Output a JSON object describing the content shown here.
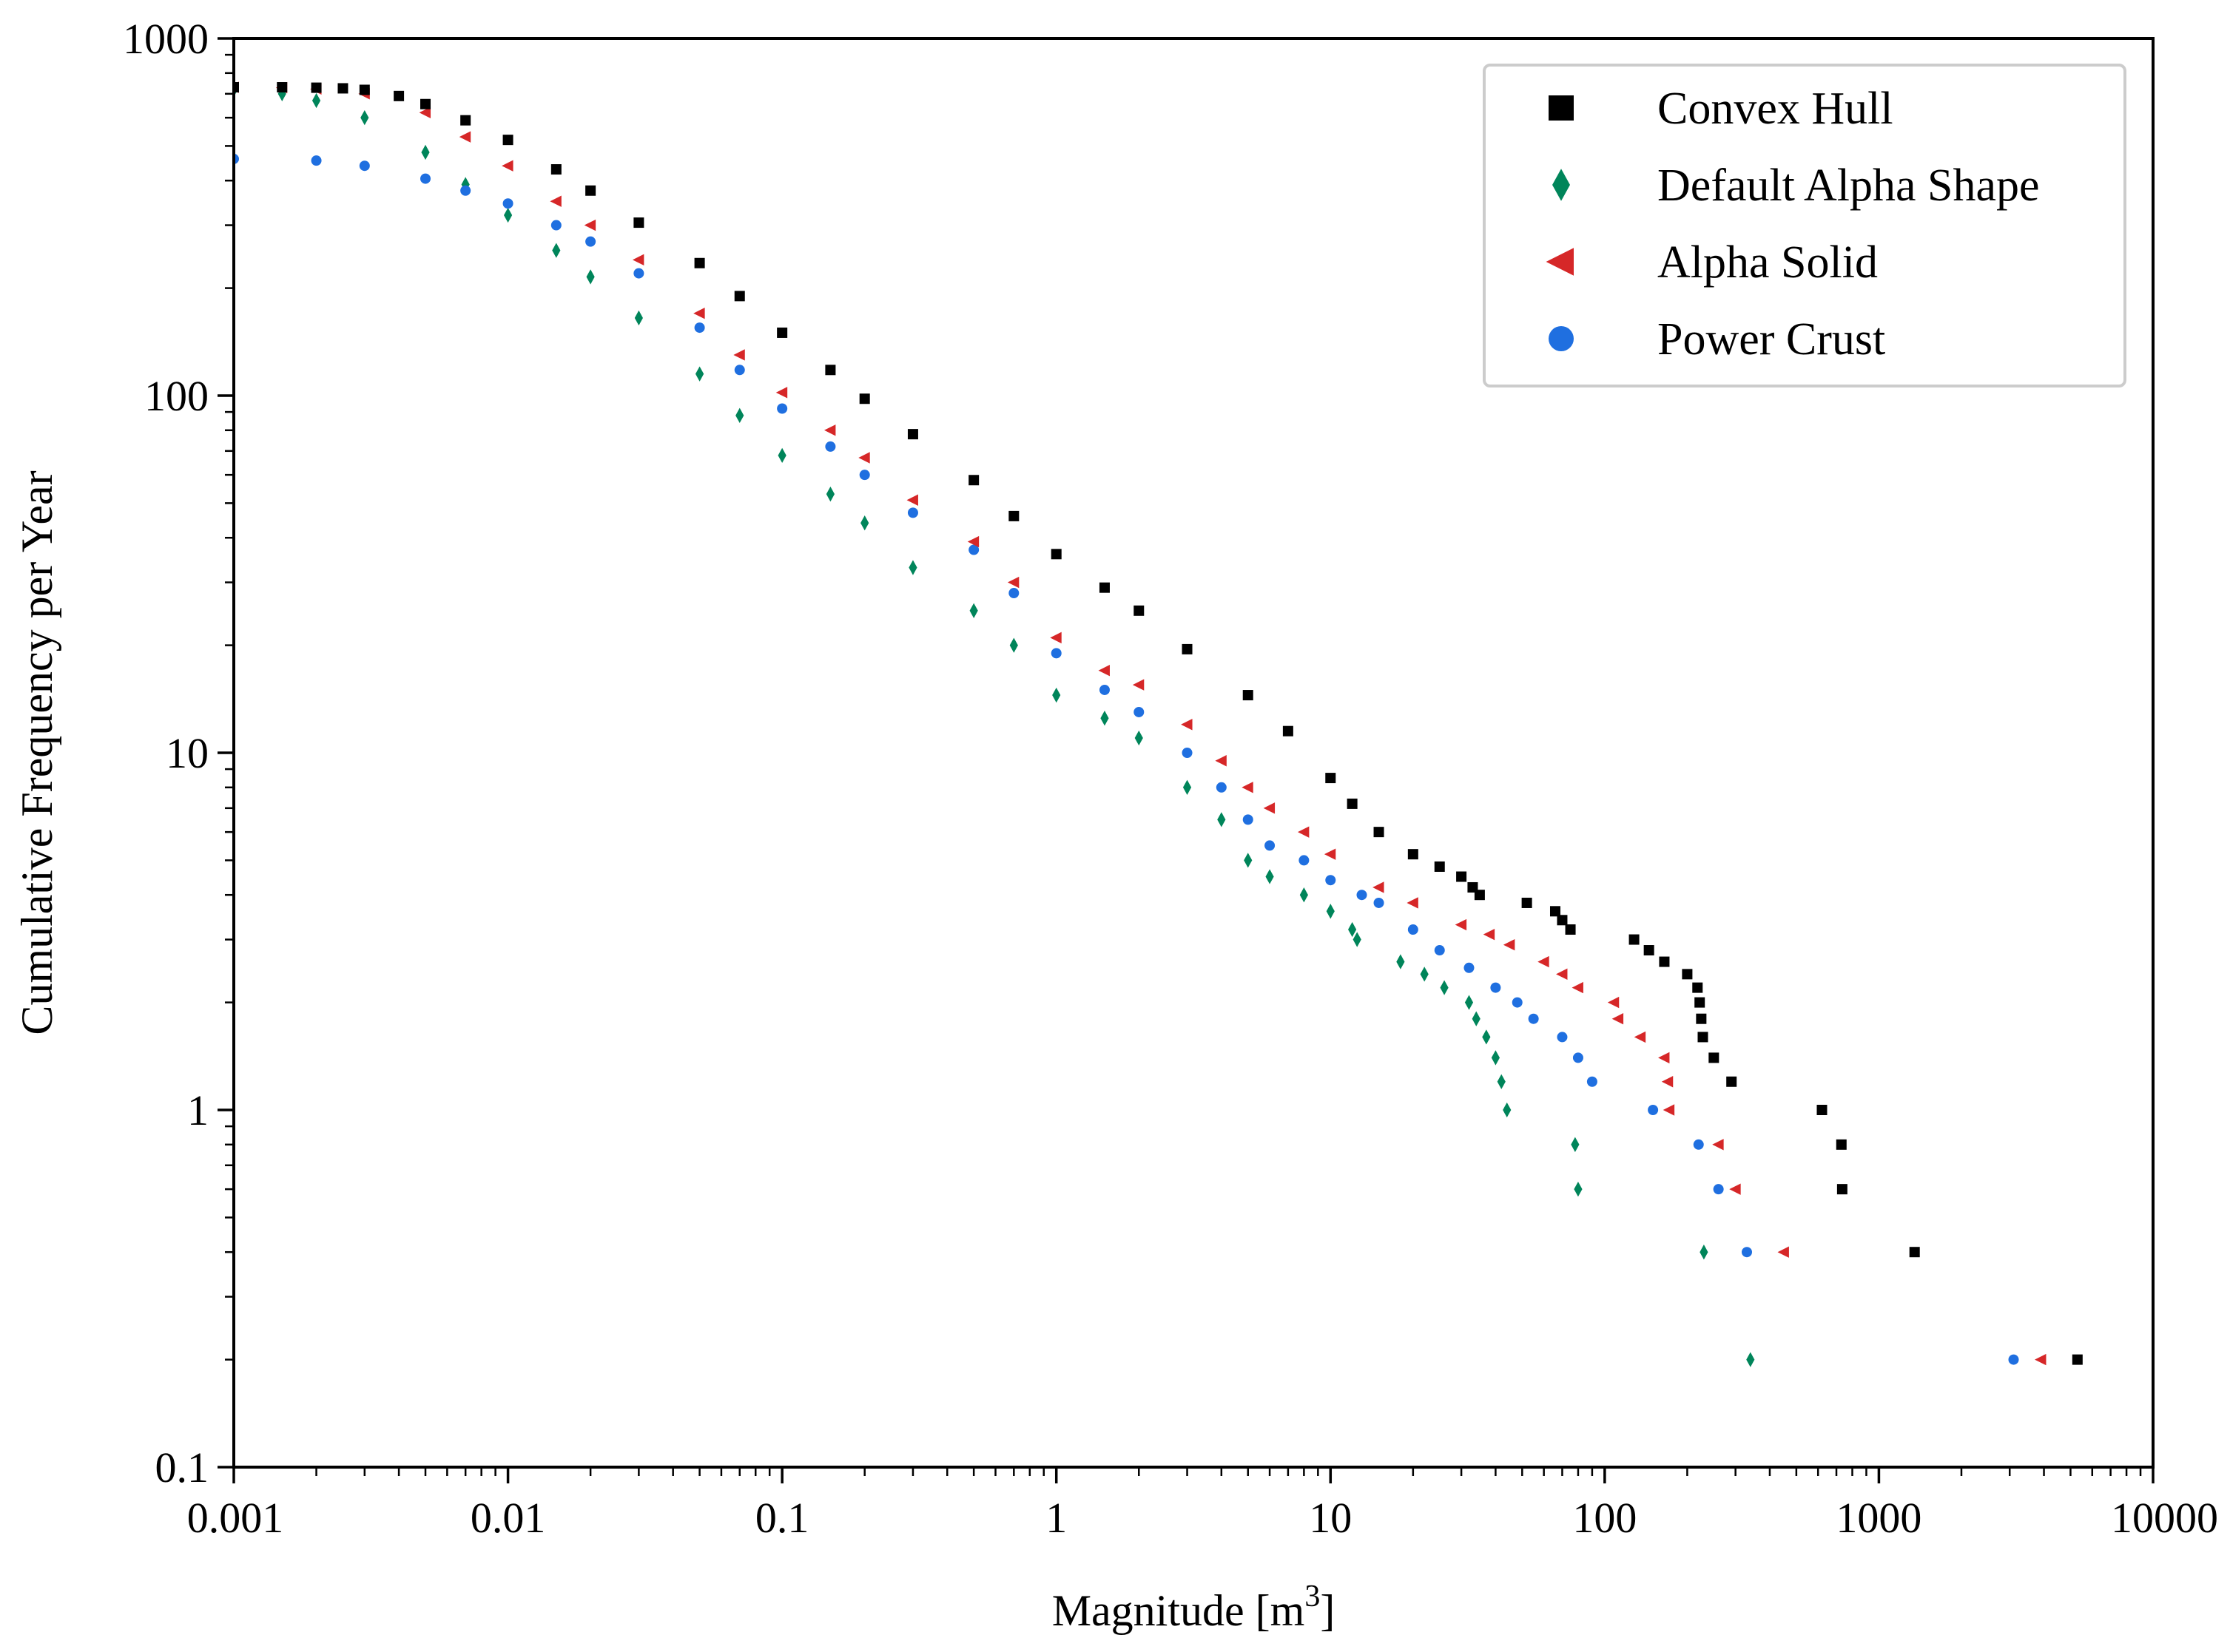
{
  "chart_data": {
    "type": "scatter",
    "title": "",
    "xlabel": "Magnitude [m",
    "xlabel_sup": "3",
    "xlabel_close": "]",
    "ylabel": "Cumulative Frequency per Year",
    "xscale": "log",
    "yscale": "log",
    "xlim": [
      0.001,
      10000
    ],
    "ylim": [
      0.1,
      1000
    ],
    "xticks": [
      0.001,
      0.01,
      0.1,
      1,
      10,
      100,
      1000,
      10000
    ],
    "xtick_labels": [
      "0.001",
      "0.01",
      "0.1",
      "1",
      "10",
      "100",
      "1000",
      "10000"
    ],
    "yticks": [
      0.1,
      1,
      10,
      100,
      1000
    ],
    "ytick_labels": [
      "0.1",
      "1",
      "10",
      "100",
      "1000"
    ],
    "grid": false,
    "legend_position": "top-right",
    "series": [
      {
        "name": "Convex Hull",
        "marker": "square",
        "color": "#000000",
        "points": [
          [
            0.001,
            730
          ],
          [
            0.0015,
            730
          ],
          [
            0.002,
            728
          ],
          [
            0.0025,
            725
          ],
          [
            0.003,
            718
          ],
          [
            0.004,
            690
          ],
          [
            0.005,
            655
          ],
          [
            0.007,
            590
          ],
          [
            0.01,
            520
          ],
          [
            0.015,
            430
          ],
          [
            0.02,
            375
          ],
          [
            0.03,
            305
          ],
          [
            0.05,
            235
          ],
          [
            0.07,
            190
          ],
          [
            0.1,
            150
          ],
          [
            0.15,
            118
          ],
          [
            0.2,
            98
          ],
          [
            0.3,
            78
          ],
          [
            0.5,
            58
          ],
          [
            0.7,
            46
          ],
          [
            1,
            36
          ],
          [
            1.5,
            29
          ],
          [
            2,
            25
          ],
          [
            3,
            19.5
          ],
          [
            5,
            14.5
          ],
          [
            7,
            11.5
          ],
          [
            10,
            8.5
          ],
          [
            12,
            7.2
          ],
          [
            15,
            6
          ],
          [
            20,
            5.2
          ],
          [
            25,
            4.8
          ],
          [
            30,
            4.5
          ],
          [
            33,
            4.2
          ],
          [
            35,
            4.0
          ],
          [
            52,
            3.8
          ],
          [
            66,
            3.6
          ],
          [
            70,
            3.4
          ],
          [
            75,
            3.2
          ],
          [
            128,
            3.0
          ],
          [
            145,
            2.8
          ],
          [
            165,
            2.6
          ],
          [
            200,
            2.4
          ],
          [
            218,
            2.2
          ],
          [
            222,
            2.0
          ],
          [
            225,
            1.8
          ],
          [
            228,
            1.6
          ],
          [
            250,
            1.4
          ],
          [
            290,
            1.2
          ],
          [
            620,
            1.0
          ],
          [
            730,
            0.8
          ],
          [
            735,
            0.6
          ],
          [
            1350,
            0.4
          ],
          [
            5300,
            0.2
          ]
        ]
      },
      {
        "name": "Default Alpha Shape",
        "marker": "diamond",
        "color": "#00855a",
        "points": [
          [
            0.001,
            720
          ],
          [
            0.0015,
            700
          ],
          [
            0.002,
            670
          ],
          [
            0.003,
            600
          ],
          [
            0.005,
            480
          ],
          [
            0.007,
            390
          ],
          [
            0.01,
            320
          ],
          [
            0.015,
            255
          ],
          [
            0.02,
            215
          ],
          [
            0.03,
            165
          ],
          [
            0.05,
            115
          ],
          [
            0.07,
            88
          ],
          [
            0.1,
            68
          ],
          [
            0.15,
            53
          ],
          [
            0.2,
            44
          ],
          [
            0.3,
            33
          ],
          [
            0.5,
            25
          ],
          [
            0.7,
            20
          ],
          [
            1,
            14.5
          ],
          [
            1.5,
            12.5
          ],
          [
            2,
            11
          ],
          [
            3,
            8
          ],
          [
            4,
            6.5
          ],
          [
            5,
            5
          ],
          [
            6,
            4.5
          ],
          [
            8,
            4.0
          ],
          [
            10,
            3.6
          ],
          [
            12,
            3.2
          ],
          [
            12.5,
            3.0
          ],
          [
            18,
            2.6
          ],
          [
            22,
            2.4
          ],
          [
            26,
            2.2
          ],
          [
            32,
            2.0
          ],
          [
            34,
            1.8
          ],
          [
            37,
            1.6
          ],
          [
            40,
            1.4
          ],
          [
            42,
            1.2
          ],
          [
            44,
            1.0
          ],
          [
            78,
            0.8
          ],
          [
            80,
            0.6
          ],
          [
            230,
            0.4
          ],
          [
            340,
            0.2
          ]
        ]
      },
      {
        "name": "Alpha Solid",
        "marker": "triangle-left",
        "color": "#d62728",
        "points": [
          [
            0.001,
            730
          ],
          [
            0.0015,
            728
          ],
          [
            0.002,
            722
          ],
          [
            0.003,
            700
          ],
          [
            0.005,
            620
          ],
          [
            0.007,
            530
          ],
          [
            0.01,
            440
          ],
          [
            0.015,
            350
          ],
          [
            0.02,
            300
          ],
          [
            0.03,
            240
          ],
          [
            0.05,
            170
          ],
          [
            0.07,
            130
          ],
          [
            0.1,
            102
          ],
          [
            0.15,
            80
          ],
          [
            0.2,
            67
          ],
          [
            0.3,
            51
          ],
          [
            0.5,
            39
          ],
          [
            0.7,
            30
          ],
          [
            1,
            21
          ],
          [
            1.5,
            17
          ],
          [
            2,
            15.5
          ],
          [
            3,
            12
          ],
          [
            4,
            9.5
          ],
          [
            5,
            8
          ],
          [
            6,
            7
          ],
          [
            8,
            6
          ],
          [
            10,
            5.2
          ],
          [
            15,
            4.2
          ],
          [
            20,
            3.8
          ],
          [
            30,
            3.3
          ],
          [
            38,
            3.1
          ],
          [
            45,
            2.9
          ],
          [
            60,
            2.6
          ],
          [
            70,
            2.4
          ],
          [
            80,
            2.2
          ],
          [
            108,
            2.0
          ],
          [
            112,
            1.8
          ],
          [
            135,
            1.6
          ],
          [
            165,
            1.4
          ],
          [
            170,
            1.2
          ],
          [
            172,
            1.0
          ],
          [
            260,
            0.8
          ],
          [
            300,
            0.6
          ],
          [
            450,
            0.4
          ],
          [
            3900,
            0.2
          ]
        ]
      },
      {
        "name": "Power Crust",
        "marker": "circle",
        "color": "#1f6fe0",
        "points": [
          [
            0.001,
            460
          ],
          [
            0.002,
            455
          ],
          [
            0.003,
            440
          ],
          [
            0.005,
            405
          ],
          [
            0.007,
            375
          ],
          [
            0.01,
            345
          ],
          [
            0.015,
            300
          ],
          [
            0.02,
            270
          ],
          [
            0.03,
            220
          ],
          [
            0.05,
            155
          ],
          [
            0.07,
            118
          ],
          [
            0.1,
            92
          ],
          [
            0.15,
            72
          ],
          [
            0.2,
            60
          ],
          [
            0.3,
            47
          ],
          [
            0.5,
            37
          ],
          [
            0.7,
            28
          ],
          [
            1,
            19
          ],
          [
            1.5,
            15
          ],
          [
            2,
            13
          ],
          [
            3,
            10
          ],
          [
            4,
            8
          ],
          [
            5,
            6.5
          ],
          [
            6,
            5.5
          ],
          [
            8,
            5
          ],
          [
            10,
            4.4
          ],
          [
            13,
            4.0
          ],
          [
            15,
            3.8
          ],
          [
            20,
            3.2
          ],
          [
            25,
            2.8
          ],
          [
            32,
            2.5
          ],
          [
            40,
            2.2
          ],
          [
            48,
            2.0
          ],
          [
            55,
            1.8
          ],
          [
            70,
            1.6
          ],
          [
            80,
            1.4
          ],
          [
            90,
            1.2
          ],
          [
            150,
            1.0
          ],
          [
            220,
            0.8
          ],
          [
            260,
            0.6
          ],
          [
            330,
            0.4
          ],
          [
            3100,
            0.2
          ]
        ]
      }
    ]
  }
}
